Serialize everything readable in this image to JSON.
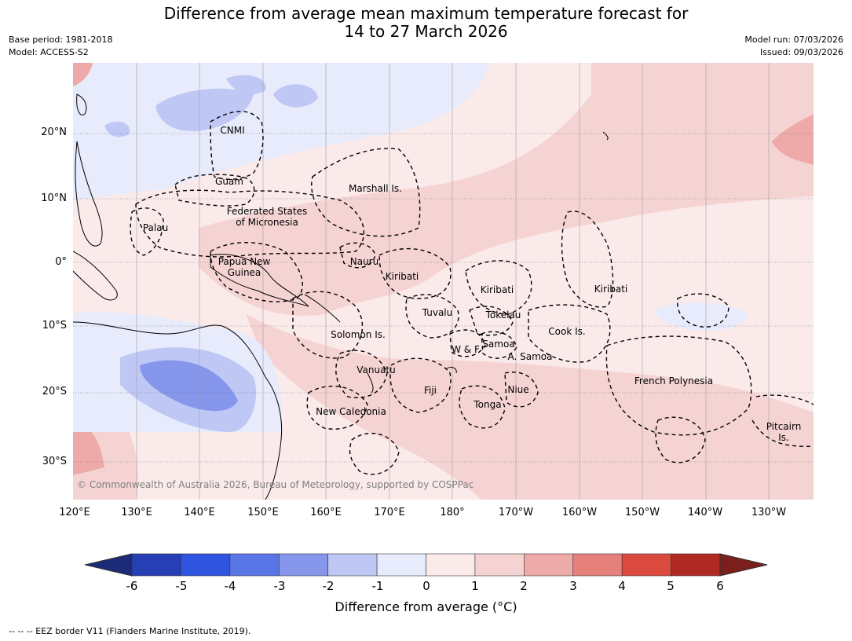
{
  "title": {
    "line1": "Difference from average mean maximum temperature forecast for",
    "line2": "14 to 27 March 2026"
  },
  "meta": {
    "base_period": "Base period: 1981-2018",
    "model": "Model: ACCESS-S2",
    "model_run": "Model run: 07/03/2026",
    "issued": "Issued: 09/03/2026"
  },
  "map": {
    "copyright": "© Commonwealth of Australia 2026, Bureau of Meteorology, supported by COSPPac",
    "lat_ticks": [
      "20°N",
      "10°N",
      "0°",
      "10°S",
      "20°S",
      "30°S"
    ],
    "lon_ticks": [
      "120°E",
      "130°E",
      "140°E",
      "150°E",
      "160°E",
      "170°E",
      "180°",
      "170°W",
      "160°W",
      "150°W",
      "140°W",
      "130°W"
    ],
    "labels": {
      "cnmi": "CNMI",
      "guam": "Guam",
      "marshall": "Marshall Is.",
      "fsm1": "Federated States",
      "fsm2": "of Micronesia",
      "palau": "Palau",
      "png1": "Papua New",
      "png2": "Guinea",
      "nauru": "Nauru",
      "kiribati_w": "Kiribati",
      "kiribati_c": "Kiribati",
      "kiribati_e": "Kiribati",
      "tuvalu": "Tuvalu",
      "tokelau": "Tokelau",
      "solomon": "Solomon Is.",
      "cook": "Cook Is.",
      "wf": "W & F",
      "samoa": "Samoa",
      "asamoa": "A. Samoa",
      "vanuatu": "Vanuatu",
      "fiji": "Fiji",
      "niue": "Niue",
      "tonga": "Tonga",
      "french_polynesia": "French Polynesia",
      "new_caledonia": "New Caledonia",
      "pitcairn1": "Pitcairn",
      "pitcairn2": "Is."
    }
  },
  "colorbar": {
    "label": "Difference from average (°C)",
    "ticks": [
      "-6",
      "-5",
      "-4",
      "-3",
      "-2",
      "-1",
      "0",
      "1",
      "2",
      "3",
      "4",
      "5",
      "6"
    ],
    "colors": {
      "below_min": "#1c2a78",
      "bins": [
        "#263fb4",
        "#2f55e0",
        "#5a75e6",
        "#8596eb",
        "#bfc8f5",
        "#e7ebfb",
        "#fbeaea",
        "#f5d3d3",
        "#edaaa8",
        "#e5807b",
        "#db4a3f",
        "#ae2a22"
      ],
      "above_max": "#7a1f1b"
    }
  },
  "footer": "-- -- -- EEZ border V11 (Flanders Marine Institute, 2019)."
}
